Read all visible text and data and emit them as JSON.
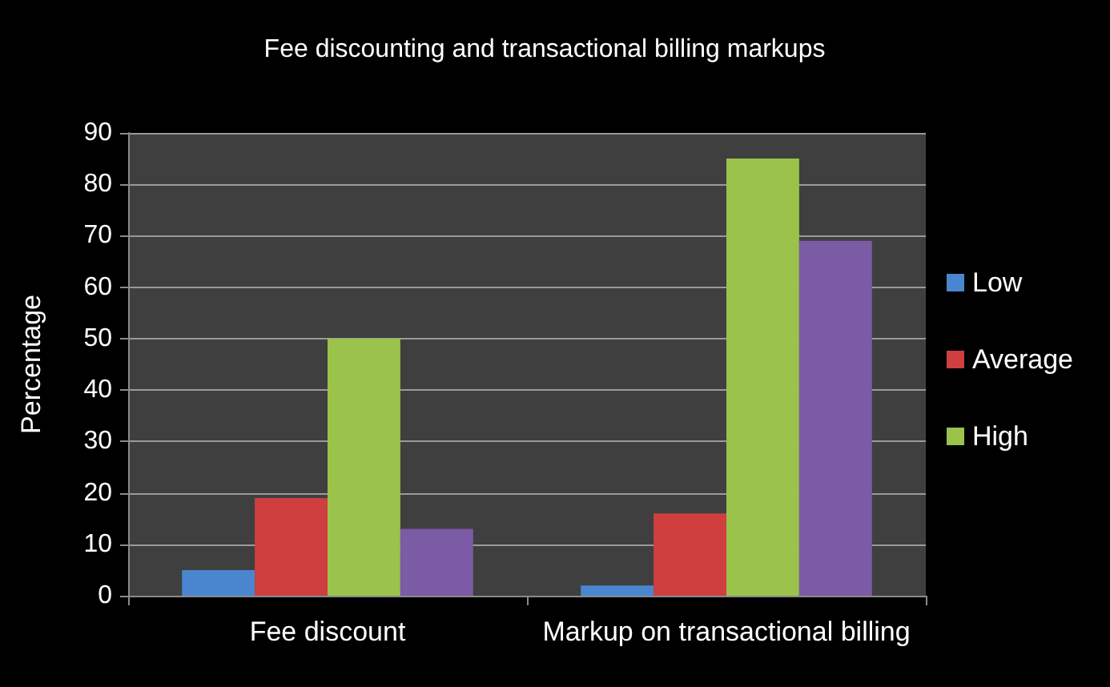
{
  "chart_data": {
    "type": "bar",
    "title": "Fee discounting and transactional billing markups",
    "ylabel": "Percentage",
    "categories": [
      "Fee discount",
      "Markup on transactional billing"
    ],
    "series": [
      {
        "name": "Low",
        "color": "#4a86cf",
        "values": [
          5,
          2
        ]
      },
      {
        "name": "Average",
        "color": "#cf3f3f",
        "values": [
          19,
          16
        ]
      },
      {
        "name": "High",
        "color": "#9bc24a",
        "values": [
          50,
          85
        ]
      },
      {
        "color": "#7b5ba6",
        "values": [
          13,
          69
        ]
      }
    ],
    "ylim": [
      0,
      90
    ],
    "yticks": [
      0,
      10,
      20,
      30,
      40,
      50,
      60,
      70,
      80,
      90
    ],
    "grid": "y",
    "legend": "right"
  }
}
